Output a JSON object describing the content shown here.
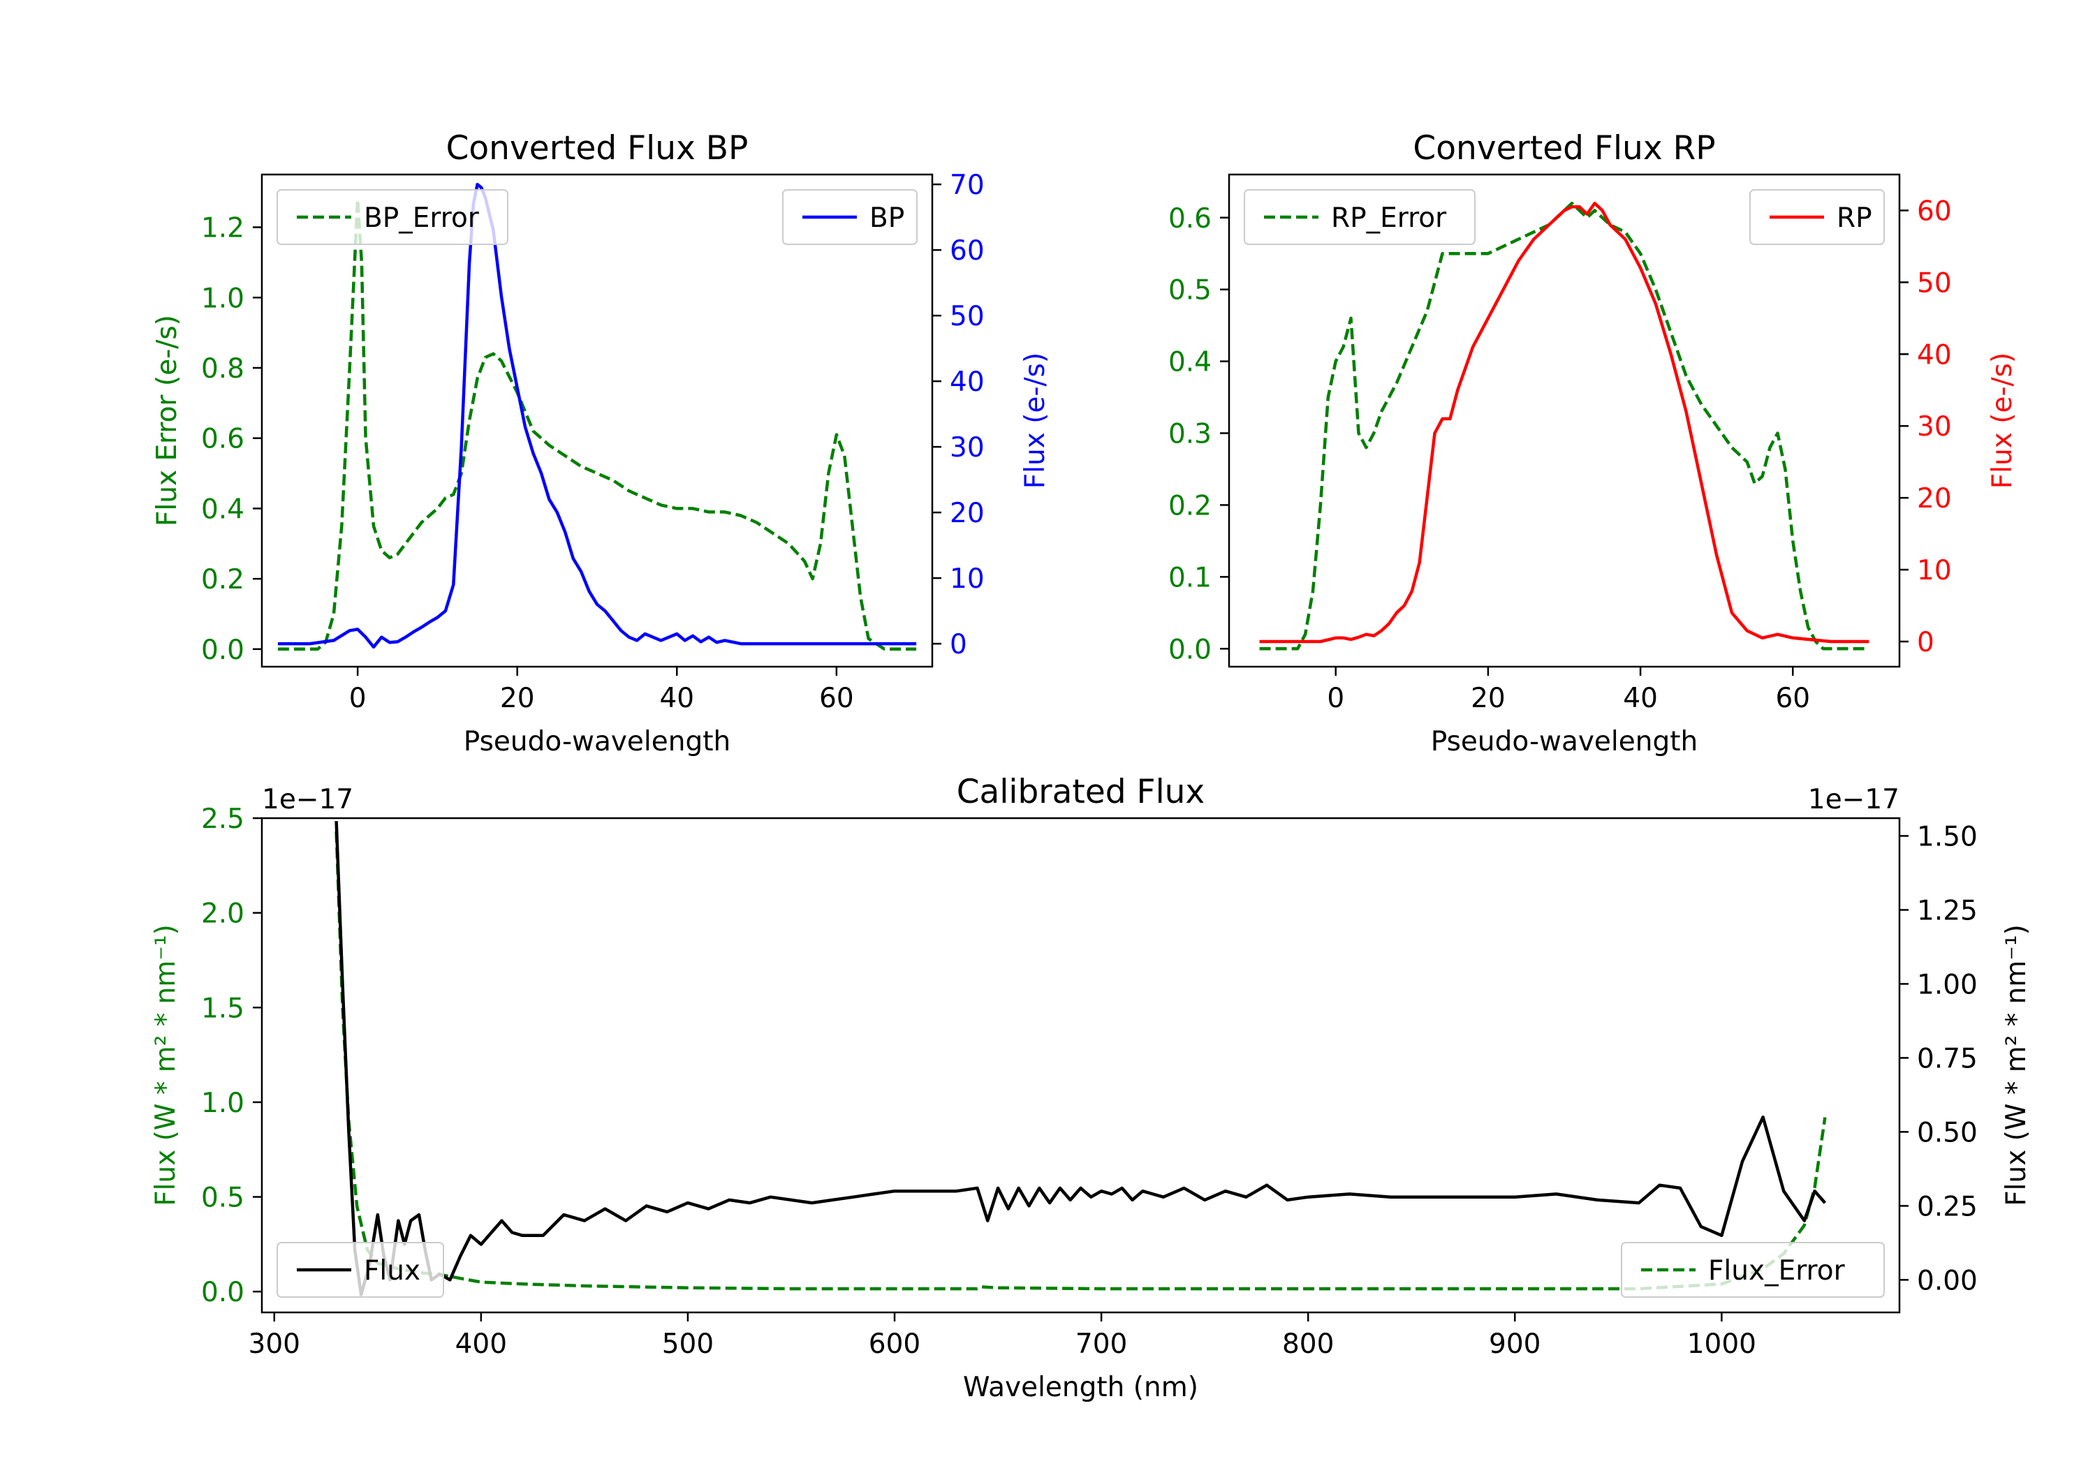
{
  "colors": {
    "green": "#008000",
    "blue": "#0000ff",
    "red": "#ff0000",
    "black": "#000000"
  },
  "chart_data": [
    {
      "type": "line",
      "title": "Converted Flux BP",
      "xlabel": "Pseudo-wavelength",
      "xlim": [
        -12,
        72
      ],
      "xticks": [
        0,
        20,
        40,
        60
      ],
      "left_axis": {
        "label": "Flux Error (e-/s)",
        "color": "#008000",
        "ylim": [
          -0.05,
          1.35
        ],
        "ticks": [
          "0.0",
          "0.2",
          "0.4",
          "0.6",
          "0.8",
          "1.0",
          "1.2"
        ]
      },
      "right_axis": {
        "label": "Flux (e-/s)",
        "color": "#0000ff",
        "ylim": [
          -3.5,
          71.5
        ],
        "ticks": [
          "0",
          "10",
          "20",
          "30",
          "40",
          "50",
          "60",
          "70"
        ]
      },
      "series": [
        {
          "name": "BP_Error",
          "axis": "left",
          "color": "#008000",
          "dash": true,
          "x": [
            -10,
            -5,
            -4,
            -3,
            -2,
            -1,
            0,
            0.5,
            1,
            2,
            3,
            4,
            5,
            6,
            8,
            10,
            11,
            12,
            13,
            14,
            15,
            16,
            17,
            18,
            20,
            22,
            24,
            26,
            28,
            30,
            32,
            34,
            36,
            38,
            40,
            42,
            44,
            46,
            48,
            50,
            52,
            54,
            56,
            57,
            58,
            59,
            60,
            61,
            62,
            63,
            64,
            66,
            70
          ],
          "y": [
            0,
            0,
            0.02,
            0.1,
            0.35,
            0.8,
            1.28,
            1.1,
            0.6,
            0.35,
            0.28,
            0.26,
            0.27,
            0.3,
            0.36,
            0.4,
            0.43,
            0.44,
            0.5,
            0.65,
            0.77,
            0.83,
            0.84,
            0.82,
            0.73,
            0.62,
            0.58,
            0.55,
            0.52,
            0.5,
            0.48,
            0.45,
            0.43,
            0.41,
            0.4,
            0.4,
            0.39,
            0.39,
            0.38,
            0.36,
            0.33,
            0.3,
            0.25,
            0.2,
            0.3,
            0.5,
            0.61,
            0.55,
            0.35,
            0.15,
            0.03,
            0,
            0
          ]
        },
        {
          "name": "BP",
          "axis": "right",
          "color": "#0000ff",
          "dash": false,
          "x": [
            -10,
            -6,
            -3,
            -1,
            0,
            1,
            2,
            3,
            4,
            5,
            6,
            7,
            8,
            9,
            10,
            11,
            12,
            13,
            14,
            14.5,
            15,
            15.5,
            16,
            17,
            18,
            19,
            20,
            21,
            22,
            23,
            24,
            25,
            26,
            27,
            28,
            29,
            30,
            31,
            32,
            33,
            34,
            35,
            36,
            37,
            38,
            39,
            40,
            41,
            42,
            43,
            44,
            45,
            46,
            48,
            50,
            52,
            55,
            60,
            65,
            70
          ],
          "y": [
            0,
            0,
            0.5,
            2,
            2.2,
            1,
            -0.5,
            1,
            0.2,
            0.3,
            1,
            1.8,
            2.5,
            3.3,
            4,
            5,
            9,
            30,
            58,
            67,
            70,
            69.5,
            68,
            63,
            53,
            45,
            39,
            33,
            29,
            26,
            22,
            20,
            17,
            13,
            11,
            8,
            6,
            5,
            3.5,
            2,
            1,
            0.5,
            1.5,
            1,
            0.5,
            1,
            1.5,
            0.5,
            1.2,
            0.3,
            1,
            0.2,
            0.5,
            0,
            0,
            0,
            0,
            0,
            0,
            0
          ]
        }
      ],
      "legends": [
        {
          "label": "BP_Error",
          "position": "upper-left"
        },
        {
          "label": "BP",
          "position": "upper-right"
        }
      ]
    },
    {
      "type": "line",
      "title": "Converted Flux RP",
      "xlabel": "Pseudo-wavelength",
      "xlim": [
        -14,
        74
      ],
      "xticks": [
        0,
        20,
        40,
        60
      ],
      "left_axis": {
        "label": "Flux Error (e-/s)",
        "color": "#008000",
        "ylim": [
          -0.025,
          0.66
        ],
        "ticks": [
          "0.0",
          "0.1",
          "0.2",
          "0.3",
          "0.4",
          "0.5",
          "0.6"
        ]
      },
      "right_axis": {
        "label": "Flux (e-/s)",
        "color": "#ff0000",
        "ylim": [
          -3.5,
          65
        ],
        "ticks": [
          "0",
          "10",
          "20",
          "30",
          "40",
          "50",
          "60"
        ]
      },
      "series": [
        {
          "name": "RP_Error",
          "axis": "left",
          "color": "#008000",
          "dash": true,
          "x": [
            -10,
            -5,
            -4,
            -3,
            -2,
            -1,
            0,
            1,
            2,
            3,
            4,
            5,
            6,
            8,
            10,
            12,
            14,
            16,
            18,
            20,
            22,
            24,
            26,
            28,
            30,
            31,
            32,
            33,
            34,
            35,
            36,
            38,
            40,
            42,
            44,
            46,
            48,
            50,
            52,
            54,
            55,
            56,
            57,
            58,
            59,
            60,
            61,
            62,
            63,
            64,
            65,
            70
          ],
          "y": [
            0,
            0,
            0.02,
            0.08,
            0.2,
            0.35,
            0.4,
            0.42,
            0.46,
            0.3,
            0.28,
            0.3,
            0.33,
            0.37,
            0.42,
            0.47,
            0.55,
            0.55,
            0.55,
            0.55,
            0.56,
            0.57,
            0.58,
            0.59,
            0.61,
            0.62,
            0.61,
            0.6,
            0.61,
            0.6,
            0.59,
            0.58,
            0.55,
            0.5,
            0.44,
            0.38,
            0.34,
            0.31,
            0.28,
            0.26,
            0.23,
            0.24,
            0.28,
            0.3,
            0.25,
            0.15,
            0.08,
            0.03,
            0.01,
            0,
            0,
            0
          ]
        },
        {
          "name": "RP",
          "axis": "right",
          "color": "#ff0000",
          "dash": false,
          "x": [
            -10,
            -5,
            -2,
            0,
            1,
            2,
            3,
            4,
            5,
            6,
            7,
            8,
            9,
            10,
            11,
            12,
            13,
            14,
            15,
            16,
            17,
            18,
            19,
            20,
            22,
            24,
            26,
            28,
            30,
            31,
            32,
            33,
            34,
            35,
            36,
            37,
            38,
            40,
            42,
            44,
            46,
            48,
            50,
            52,
            54,
            56,
            58,
            60,
            65,
            70
          ],
          "y": [
            0,
            0,
            0,
            0.5,
            0.5,
            0.3,
            0.6,
            1,
            0.8,
            1.5,
            2.5,
            4,
            5,
            7,
            11,
            20,
            29,
            31,
            31,
            35,
            38,
            41,
            43,
            45,
            49,
            53,
            56,
            58,
            60,
            60.5,
            60.5,
            59.5,
            61,
            60,
            58,
            57,
            56,
            52,
            47,
            40,
            32,
            22,
            12,
            4,
            1.5,
            0.5,
            1,
            0.5,
            0,
            0
          ]
        }
      ],
      "legends": [
        {
          "label": "RP_Error",
          "position": "upper-left"
        },
        {
          "label": "RP",
          "position": "upper-right"
        }
      ]
    },
    {
      "type": "line",
      "title": "Calibrated Flux",
      "xlabel": "Wavelength (nm)",
      "xlim": [
        294,
        1086
      ],
      "xticks": [
        300,
        400,
        500,
        600,
        700,
        800,
        900,
        1000
      ],
      "left_axis": {
        "label": "Flux (W * m² * nm⁻¹)",
        "color": "#008000",
        "ylim": [
          -0.11,
          2.5
        ],
        "ticks": [
          "0.0",
          "0.5",
          "1.0",
          "1.5",
          "2.0",
          "2.5"
        ],
        "offset": "1e−17"
      },
      "right_axis": {
        "label": "Flux (W * m² * nm⁻¹)",
        "color": "#000000",
        "ylim": [
          -0.11,
          1.56
        ],
        "ticks": [
          "0.00",
          "0.25",
          "0.50",
          "0.75",
          "1.00",
          "1.25",
          "1.50"
        ],
        "offset": "1e−17"
      },
      "series": [
        {
          "name": "Flux_Error",
          "axis": "left",
          "color": "#008000",
          "dash": true,
          "x": [
            330,
            333,
            336,
            340,
            345,
            350,
            360,
            370,
            380,
            390,
            400,
            420,
            450,
            500,
            550,
            600,
            640,
            642,
            650,
            700,
            800,
            900,
            960,
            1000,
            1020,
            1030,
            1040,
            1045,
            1050
          ],
          "y": [
            2.43,
            1.5,
            0.9,
            0.45,
            0.22,
            0.15,
            0.12,
            0.1,
            0.09,
            0.07,
            0.05,
            0.04,
            0.03,
            0.02,
            0.015,
            0.015,
            0.015,
            0.025,
            0.02,
            0.015,
            0.015,
            0.015,
            0.015,
            0.04,
            0.12,
            0.2,
            0.35,
            0.55,
            0.92
          ]
        },
        {
          "name": "Flux",
          "axis": "right",
          "color": "#000000",
          "dash": false,
          "x": [
            330,
            333,
            336,
            339,
            342,
            346,
            350,
            353,
            356,
            360,
            363,
            366,
            370,
            373,
            376,
            380,
            385,
            390,
            395,
            400,
            405,
            410,
            415,
            420,
            430,
            440,
            450,
            460,
            470,
            480,
            490,
            500,
            510,
            520,
            530,
            540,
            550,
            560,
            570,
            580,
            590,
            600,
            610,
            620,
            630,
            640,
            645,
            650,
            655,
            660,
            665,
            670,
            675,
            680,
            685,
            690,
            695,
            700,
            705,
            710,
            715,
            720,
            730,
            740,
            750,
            760,
            770,
            780,
            790,
            800,
            820,
            840,
            860,
            880,
            900,
            920,
            940,
            960,
            970,
            980,
            990,
            1000,
            1010,
            1020,
            1030,
            1040,
            1045,
            1050
          ],
          "y": [
            1.55,
            1.0,
            0.5,
            0.1,
            -0.05,
            0.05,
            0.22,
            0.08,
            0.0,
            0.2,
            0.12,
            0.2,
            0.22,
            0.1,
            0.0,
            0.02,
            0.0,
            0.08,
            0.15,
            0.12,
            0.16,
            0.2,
            0.16,
            0.15,
            0.15,
            0.22,
            0.2,
            0.24,
            0.2,
            0.25,
            0.23,
            0.26,
            0.24,
            0.27,
            0.26,
            0.28,
            0.27,
            0.26,
            0.27,
            0.28,
            0.29,
            0.3,
            0.3,
            0.3,
            0.3,
            0.31,
            0.2,
            0.31,
            0.24,
            0.31,
            0.25,
            0.31,
            0.26,
            0.31,
            0.27,
            0.31,
            0.28,
            0.3,
            0.29,
            0.31,
            0.27,
            0.3,
            0.28,
            0.31,
            0.27,
            0.3,
            0.28,
            0.32,
            0.27,
            0.28,
            0.29,
            0.28,
            0.28,
            0.28,
            0.28,
            0.29,
            0.27,
            0.26,
            0.32,
            0.31,
            0.18,
            0.15,
            0.4,
            0.55,
            0.3,
            0.2,
            0.3,
            0.26
          ]
        }
      ],
      "legends": [
        {
          "label": "Flux",
          "position": "lower-left"
        },
        {
          "label": "Flux_Error",
          "position": "lower-right"
        }
      ]
    }
  ]
}
